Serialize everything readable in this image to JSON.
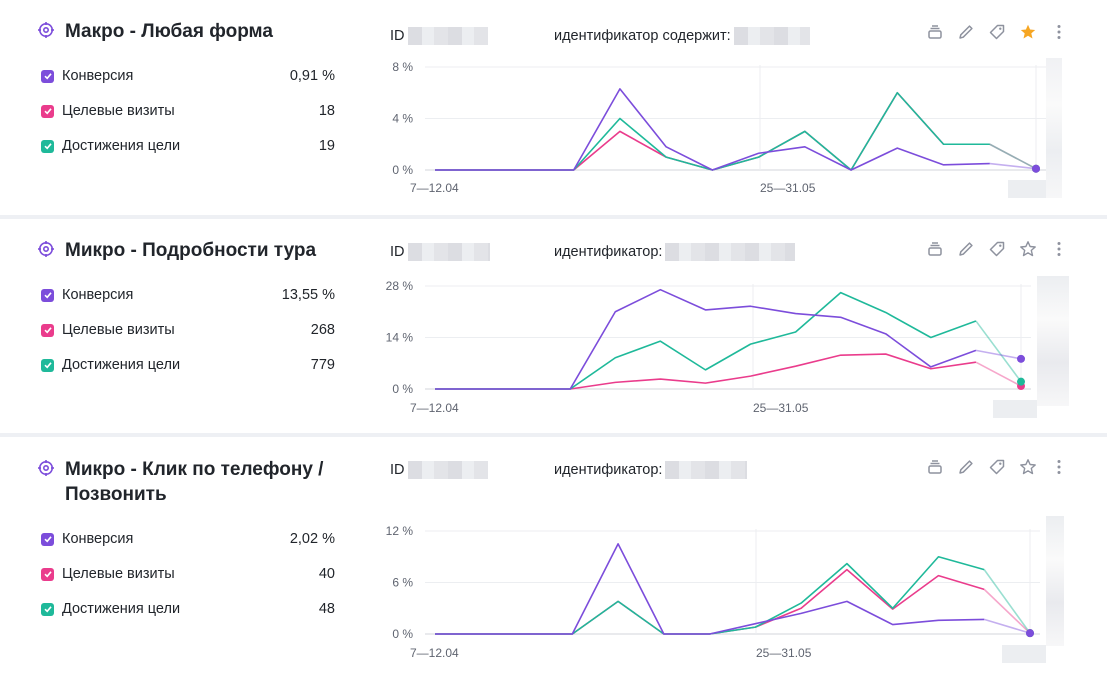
{
  "colors": {
    "conversion": "#7c4ddb",
    "visits": "#ea3c8c",
    "achievements": "#1fb99a",
    "star_active": "#f6a623",
    "icon": "#8e929e"
  },
  "cards": [
    {
      "title": "Макро - Любая форма",
      "id_label": "ID",
      "ctx_label": "идентификатор содержит:",
      "starred": true,
      "metrics": [
        {
          "label": "Конверсия",
          "value": "0,91 %"
        },
        {
          "label": "Целевые визиты",
          "value": "18"
        },
        {
          "label": "Достижения цели",
          "value": "19"
        }
      ],
      "chart_data": {
        "type": "line",
        "y_ticks": [
          "8 %",
          "4 %",
          "0 %"
        ],
        "x_ticks": [
          "7—12.04",
          "25—31.05"
        ],
        "ylim": [
          0,
          8
        ],
        "series": [
          {
            "role": "conversion",
            "values": [
              0,
              0,
              0,
              0,
              6.3,
              1.8,
              0,
              1.3,
              1.8,
              0,
              1.7,
              0.4,
              0.5,
              0.1
            ]
          },
          {
            "role": "visits",
            "values": [
              0,
              0,
              0,
              0,
              3.0,
              1.0,
              0,
              1.0,
              3.0,
              0,
              6.0,
              2.0,
              2.0,
              0.1
            ]
          },
          {
            "role": "achievements",
            "values": [
              0,
              0,
              0,
              0,
              4.0,
              1.0,
              0,
              1.0,
              3.0,
              0,
              6.0,
              2.0,
              2.0,
              0.1
            ]
          }
        ]
      }
    },
    {
      "title": "Микро - Подробности тура",
      "id_label": "ID",
      "ctx_label": "идентификатор:",
      "starred": false,
      "metrics": [
        {
          "label": "Конверсия",
          "value": "13,55 %"
        },
        {
          "label": "Целевые визиты",
          "value": "268"
        },
        {
          "label": "Достижения цели",
          "value": "779"
        }
      ],
      "chart_data": {
        "type": "line",
        "y_ticks": [
          "28 %",
          "14 %",
          "0 %"
        ],
        "x_ticks": [
          "7—12.04",
          "25—31.05"
        ],
        "ylim": [
          0,
          28
        ],
        "series": [
          {
            "role": "conversion",
            "values": [
              0,
              0,
              0,
              0,
              21,
              27,
              21.5,
              22.5,
              20.5,
              19.5,
              15,
              6,
              10.5,
              8.2
            ]
          },
          {
            "role": "visits",
            "values": [
              0,
              0,
              0,
              0,
              1.8,
              2.7,
              1.6,
              3.5,
              6.2,
              9.2,
              9.5,
              5.5,
              7.3,
              0.8
            ]
          },
          {
            "role": "achievements",
            "values": [
              0,
              0,
              0,
              0,
              8.5,
              13,
              5.2,
              12.2,
              15.5,
              26.2,
              20.8,
              14,
              18.5,
              2
            ]
          }
        ]
      }
    },
    {
      "title": "Микро - Клик по телефону / Позвонить",
      "id_label": "ID",
      "ctx_label": "идентификатор:",
      "starred": false,
      "metrics": [
        {
          "label": "Конверсия",
          "value": "2,02 %"
        },
        {
          "label": "Целевые визиты",
          "value": "40"
        },
        {
          "label": "Достижения цели",
          "value": "48"
        }
      ],
      "chart_data": {
        "type": "line",
        "y_ticks": [
          "12 %",
          "6 %",
          "0 %"
        ],
        "x_ticks": [
          "7—12.04",
          "25—31.05"
        ],
        "ylim": [
          0,
          12
        ],
        "series": [
          {
            "role": "conversion",
            "values": [
              0,
              0,
              0,
              0,
              10.5,
              0,
              0,
              1.2,
              2.4,
              3.8,
              1.1,
              1.6,
              1.7,
              0.1
            ]
          },
          {
            "role": "visits",
            "values": [
              0,
              0,
              0,
              0,
              3.8,
              0,
              0,
              0.8,
              3.0,
              7.5,
              2.9,
              6.8,
              5.2,
              0.1
            ]
          },
          {
            "role": "achievements",
            "values": [
              0,
              0,
              0,
              0,
              3.8,
              0,
              0,
              0.8,
              3.6,
              8.2,
              3.0,
              9.0,
              7.5,
              0.1
            ]
          }
        ]
      }
    }
  ]
}
